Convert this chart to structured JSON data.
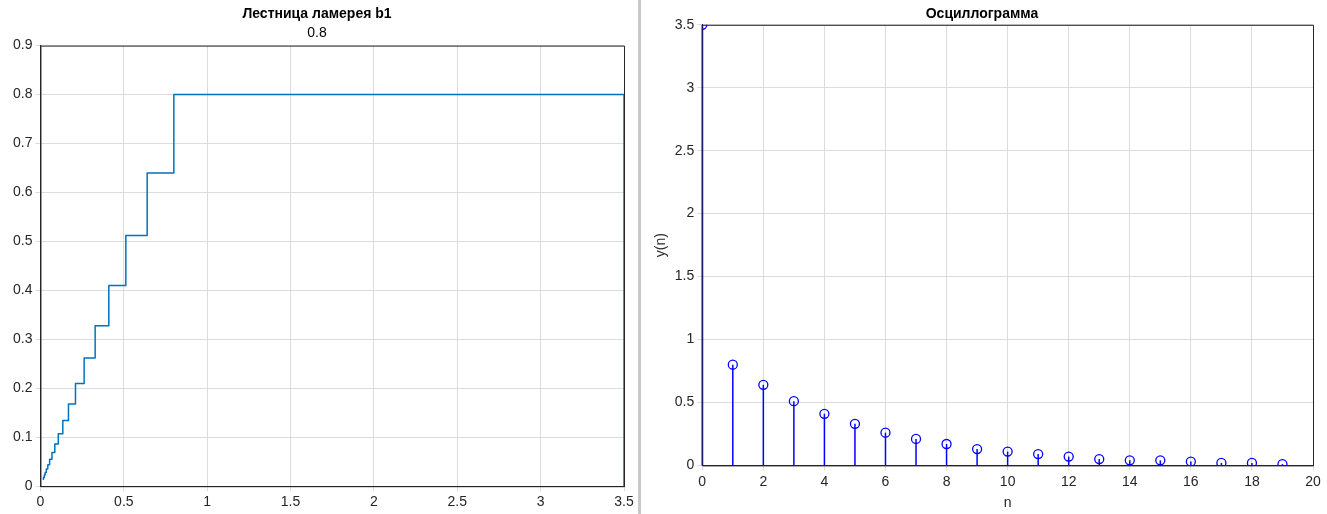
{
  "chart_data": [
    {
      "type": "line",
      "title": "Лестница ламерея b1",
      "subtitle": "0.8",
      "color": "#0072bd",
      "x": [
        3.5,
        3.5,
        0.8,
        0.8,
        0.64,
        0.64,
        0.512,
        0.512,
        0.41,
        0.41,
        0.328,
        0.328,
        0.262,
        0.262,
        0.21,
        0.21,
        0.168,
        0.168,
        0.134,
        0.134,
        0.107,
        0.107,
        0.086,
        0.086,
        0.069,
        0.069,
        0.055,
        0.055,
        0.044,
        0.044,
        0.035,
        0.035,
        0.028,
        0.028,
        0.023,
        0.023,
        0.018,
        0.018,
        0.014
      ],
      "values": [
        0,
        0.8,
        0.8,
        0.64,
        0.64,
        0.512,
        0.512,
        0.41,
        0.41,
        0.328,
        0.328,
        0.262,
        0.262,
        0.21,
        0.21,
        0.168,
        0.168,
        0.134,
        0.134,
        0.107,
        0.107,
        0.086,
        0.086,
        0.069,
        0.069,
        0.055,
        0.055,
        0.044,
        0.044,
        0.035,
        0.035,
        0.028,
        0.028,
        0.023,
        0.023,
        0.018,
        0.018,
        0.014,
        0.014
      ],
      "xlim": [
        0,
        3.5
      ],
      "xticks": [
        0,
        0.5,
        1,
        1.5,
        2,
        2.5,
        3,
        3.5
      ],
      "ylim": [
        0,
        0.9
      ],
      "yticks": [
        0,
        0.1,
        0.2,
        0.3,
        0.4,
        0.5,
        0.6,
        0.7,
        0.8,
        0.9
      ],
      "grid": true
    },
    {
      "type": "lollipop",
      "title": "Осциллограмма",
      "xlabel": "n",
      "ylabel": "y(n)",
      "color": "#0000ff",
      "marker": "circle",
      "x": [
        0,
        1,
        2,
        3,
        4,
        5,
        6,
        7,
        8,
        9,
        10,
        11,
        12,
        13,
        14,
        15,
        16,
        17,
        18,
        19
      ],
      "values": [
        3.5,
        0.8,
        0.64,
        0.51,
        0.41,
        0.33,
        0.26,
        0.21,
        0.17,
        0.13,
        0.11,
        0.09,
        0.07,
        0.05,
        0.04,
        0.04,
        0.03,
        0.02,
        0.02,
        0.01
      ],
      "xlim": [
        0,
        20
      ],
      "xticks": [
        0,
        2,
        4,
        6,
        8,
        10,
        12,
        14,
        16,
        18,
        20
      ],
      "ylim": [
        0,
        3.5
      ],
      "yticks": [
        0,
        0.5,
        1,
        1.5,
        2,
        2.5,
        3,
        3.5
      ],
      "grid": true
    }
  ]
}
